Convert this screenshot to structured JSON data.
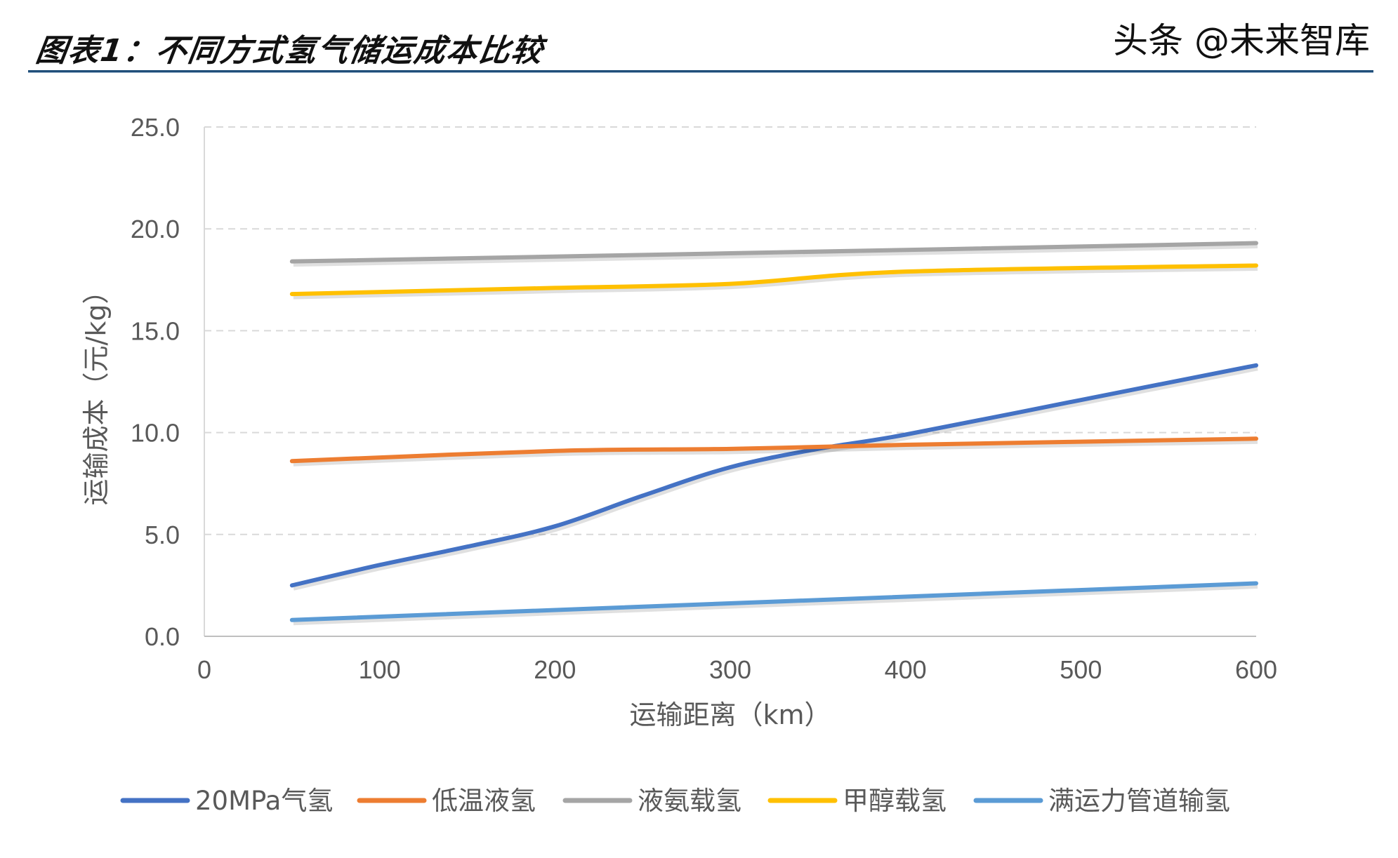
{
  "title": "图表1：不同方式氢气储运成本比较",
  "watermark": "头条 @未来智库",
  "chart_data": {
    "type": "line",
    "title": "图表1：不同方式氢气储运成本比较",
    "xlabel": "运输距离（km）",
    "ylabel": "运输成本（元/kg）",
    "xlim": [
      0,
      600
    ],
    "ylim": [
      0,
      25
    ],
    "xticks": [
      "0",
      "100",
      "200",
      "300",
      "400",
      "500",
      "600"
    ],
    "yticks": [
      "0.0",
      "5.0",
      "10.0",
      "15.0",
      "20.0",
      "25.0"
    ],
    "grid": "horizontal dashed",
    "legend_position": "bottom",
    "series": [
      {
        "name": "20MPa气氢",
        "color": "#4472c4",
        "x": [
          50,
          100,
          150,
          200,
          250,
          300,
          350,
          400,
          500,
          600
        ],
        "y": [
          2.5,
          3.5,
          4.4,
          5.4,
          6.9,
          8.3,
          9.2,
          9.9,
          11.6,
          13.3
        ]
      },
      {
        "name": "低温液氢",
        "color": "#ed7d31",
        "x": [
          50,
          200,
          300,
          400,
          600
        ],
        "y": [
          8.6,
          9.1,
          9.2,
          9.4,
          9.7
        ]
      },
      {
        "name": "液氨载氢",
        "color": "#a5a5a5",
        "x": [
          50,
          300,
          600
        ],
        "y": [
          18.4,
          18.8,
          19.3
        ]
      },
      {
        "name": "甲醇载氢",
        "color": "#ffc000",
        "x": [
          50,
          200,
          300,
          400,
          600
        ],
        "y": [
          16.8,
          17.1,
          17.3,
          17.9,
          18.2
        ]
      },
      {
        "name": "满运力管道输氢",
        "color": "#5b9bd5",
        "x": [
          50,
          600
        ],
        "y": [
          0.8,
          2.6
        ]
      }
    ]
  }
}
